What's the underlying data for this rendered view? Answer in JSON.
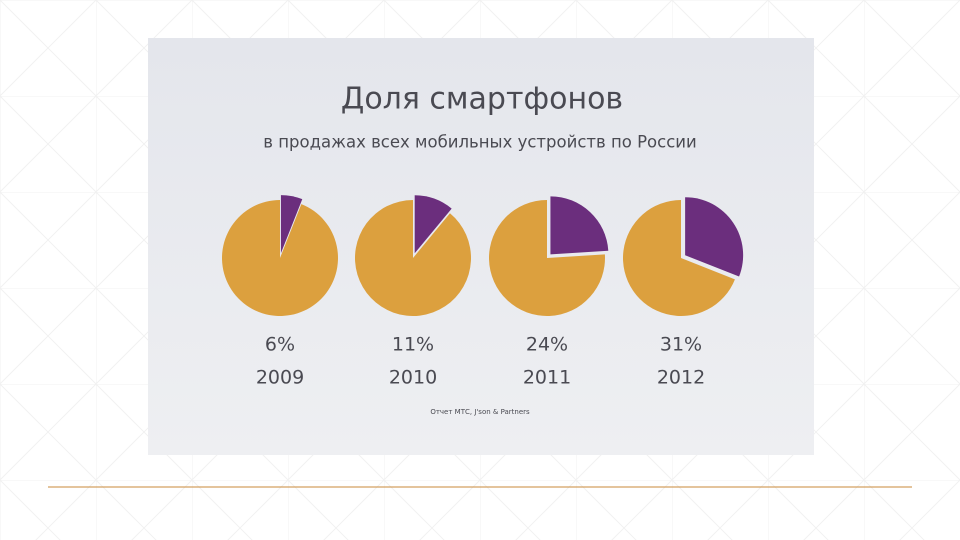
{
  "header": {
    "title": "Доля смартфонов",
    "subtitle": "в продажах всех мобильных устройств по России",
    "source": "Отчет МТС, J'son & Partners"
  },
  "chart_data": [
    {
      "type": "pie",
      "categories": [
        "2009"
      ],
      "values": [
        6
      ],
      "value_labels": [
        "6%"
      ],
      "color": "#6b2e7d",
      "base_color": "#dca03e"
    },
    {
      "type": "pie",
      "categories": [
        "2010"
      ],
      "values": [
        11
      ],
      "value_labels": [
        "11%"
      ],
      "color": "#6b2e7d",
      "base_color": "#dca03e"
    },
    {
      "type": "pie",
      "categories": [
        "2011"
      ],
      "values": [
        24
      ],
      "value_labels": [
        "24%"
      ],
      "color": "#6b2e7d",
      "base_color": "#dca03e"
    },
    {
      "type": "pie",
      "categories": [
        "2012"
      ],
      "values": [
        31
      ],
      "value_labels": [
        "31%"
      ],
      "color": "#6b2e7d",
      "base_color": "#dca03e"
    }
  ]
}
